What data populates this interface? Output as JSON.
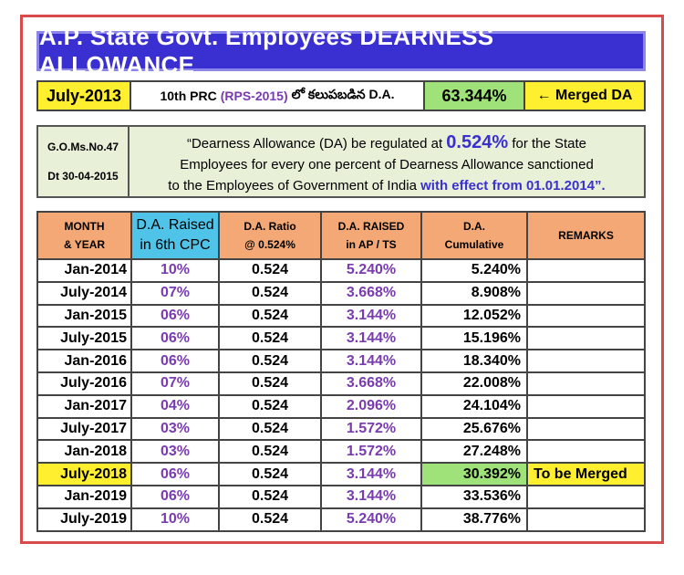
{
  "title": "A.P. State Govt. Employees DEARNESS ALLOWANCE",
  "merge": {
    "month": "July-2013",
    "prc": "10th PRC",
    "rps": "(RPS-2015)",
    "telugu": "లో కలుపబడిన D.A.",
    "value": "63.344%",
    "merged_label": "← Merged DA"
  },
  "go": {
    "number": "G.O.Ms.No.47",
    "date": "Dt 30-04-2015",
    "text_1": "“Dearness Allowance (DA) be regulated at",
    "text_pct": "0.524%",
    "text_2": "for the State",
    "text_3": "Employees for every one percent of Dearness Allowance sanctioned",
    "text_4": "to the Employees of Government of India",
    "text_eff": "with effect from 01.01.2014”."
  },
  "table": {
    "headers": {
      "month": [
        "MONTH",
        "& YEAR"
      ],
      "cpc": [
        "D.A. Raised",
        "in 6th CPC"
      ],
      "ratio": [
        "D.A. Ratio",
        "@ 0.524%"
      ],
      "raised": [
        "D.A. RAISED",
        "in AP / TS"
      ],
      "cum": [
        "D.A.",
        "Cumulative"
      ],
      "remarks": "REMARKS"
    },
    "rows": [
      {
        "month": "Jan-2014",
        "cpc": "10%",
        "ratio": "0.524",
        "raised": "5.240%",
        "cum": "5.240%",
        "remark": ""
      },
      {
        "month": "July-2014",
        "cpc": "07%",
        "ratio": "0.524",
        "raised": "3.668%",
        "cum": "8.908%",
        "remark": ""
      },
      {
        "month": "Jan-2015",
        "cpc": "06%",
        "ratio": "0.524",
        "raised": "3.144%",
        "cum": "12.052%",
        "remark": ""
      },
      {
        "month": "July-2015",
        "cpc": "06%",
        "ratio": "0.524",
        "raised": "3.144%",
        "cum": "15.196%",
        "remark": ""
      },
      {
        "month": "Jan-2016",
        "cpc": "06%",
        "ratio": "0.524",
        "raised": "3.144%",
        "cum": "18.340%",
        "remark": ""
      },
      {
        "month": "July-2016",
        "cpc": "07%",
        "ratio": "0.524",
        "raised": "3.668%",
        "cum": "22.008%",
        "remark": ""
      },
      {
        "month": "Jan-2017",
        "cpc": "04%",
        "ratio": "0.524",
        "raised": "2.096%",
        "cum": "24.104%",
        "remark": ""
      },
      {
        "month": "July-2017",
        "cpc": "03%",
        "ratio": "0.524",
        "raised": "1.572%",
        "cum": "25.676%",
        "remark": ""
      },
      {
        "month": "Jan-2018",
        "cpc": "03%",
        "ratio": "0.524",
        "raised": "1.572%",
        "cum": "27.248%",
        "remark": ""
      },
      {
        "month": "July-2018",
        "cpc": "06%",
        "ratio": "0.524",
        "raised": "3.144%",
        "cum": "30.392%",
        "remark": "To be Merged",
        "highlight": true
      },
      {
        "month": "Jan-2019",
        "cpc": "06%",
        "ratio": "0.524",
        "raised": "3.144%",
        "cum": "33.536%",
        "remark": ""
      },
      {
        "month": "July-2019",
        "cpc": "10%",
        "ratio": "0.524",
        "raised": "5.240%",
        "cum": "38.776%",
        "remark": ""
      }
    ]
  },
  "colors": {
    "title_bg": "#3a2fd0",
    "yellow": "#ffef2e",
    "green": "#9fe27a",
    "header_orange": "#f3a875",
    "header_cyan": "#4fc4e8",
    "purple_text": "#7a3ab0",
    "frame_red": "#d94a4a"
  }
}
